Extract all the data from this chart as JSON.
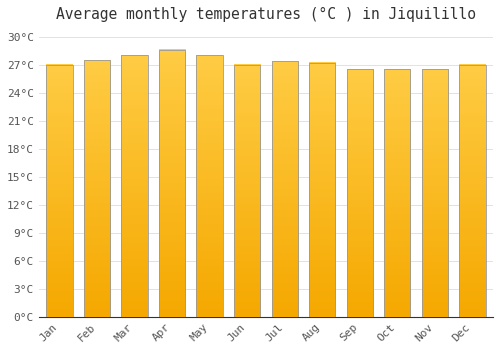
{
  "title": "Average monthly temperatures (°C ) in Jiquilillo",
  "months": [
    "Jan",
    "Feb",
    "Mar",
    "Apr",
    "May",
    "Jun",
    "Jul",
    "Aug",
    "Sep",
    "Oct",
    "Nov",
    "Dec"
  ],
  "values": [
    27.0,
    27.5,
    28.0,
    28.6,
    28.0,
    27.0,
    27.4,
    27.2,
    26.5,
    26.5,
    26.5,
    27.0
  ],
  "bar_color_bottom": "#F5A800",
  "bar_color_top": "#FFCC44",
  "bar_edge_color": "#999999",
  "background_color": "#FFFFFF",
  "grid_color": "#DDDDDD",
  "ylim": [
    0,
    31
  ],
  "ytick_step": 3,
  "title_fontsize": 10.5,
  "tick_fontsize": 8,
  "bar_width": 0.7
}
